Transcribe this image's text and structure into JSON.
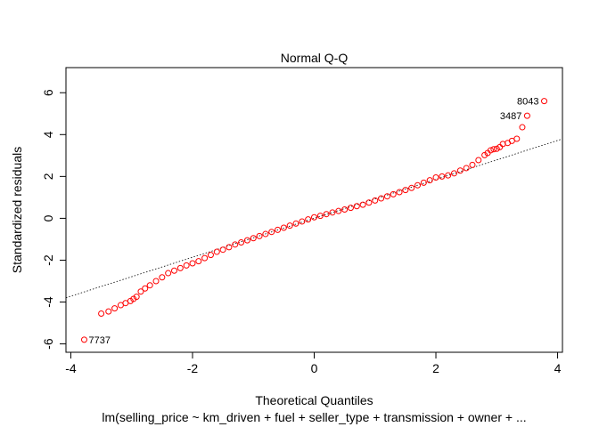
{
  "chart_data": {
    "type": "scatter",
    "title": "Normal Q-Q",
    "xlabel": "Theoretical Quantiles",
    "ylabel": "Standardized residuals",
    "subtitle": "lm(selling_price ~ km_driven + fuel + seller_type + transmission + owner +  ...",
    "xlim": [
      -4.08,
      4.08
    ],
    "ylim": [
      -6.4,
      7.2
    ],
    "xticks": [
      -4,
      -2,
      0,
      2,
      4
    ],
    "yticks": [
      -6,
      -4,
      -2,
      0,
      2,
      4,
      6
    ],
    "x_tick_labels": [
      "-4",
      "-2",
      "0",
      "2",
      "4"
    ],
    "y_tick_labels": [
      "-6",
      "-4",
      "-2",
      "0",
      "2",
      "4",
      "6"
    ],
    "grid": false,
    "legend": "none",
    "point_color": "#FF0000",
    "reference_line": {
      "slope": 0.93,
      "intercept": 0.0,
      "style": "dotted",
      "color": "#000000"
    },
    "series": [
      {
        "points": [
          [
            -3.78,
            -5.8
          ],
          [
            -3.5,
            -4.55
          ],
          [
            -3.38,
            -4.45
          ],
          [
            -3.28,
            -4.3
          ],
          [
            -3.18,
            -4.15
          ],
          [
            -3.1,
            -4.05
          ],
          [
            -3.02,
            -3.95
          ],
          [
            -2.97,
            -3.85
          ],
          [
            -2.92,
            -3.75
          ],
          [
            -2.85,
            -3.5
          ],
          [
            -2.78,
            -3.35
          ],
          [
            -2.7,
            -3.2
          ],
          [
            -2.6,
            -3.0
          ],
          [
            -2.5,
            -2.82
          ],
          [
            -2.4,
            -2.62
          ],
          [
            -2.3,
            -2.5
          ],
          [
            -2.2,
            -2.38
          ],
          [
            -2.1,
            -2.25
          ],
          [
            -2.0,
            -2.15
          ],
          [
            -1.9,
            -2.05
          ],
          [
            -1.8,
            -1.9
          ],
          [
            -1.7,
            -1.75
          ],
          [
            -1.6,
            -1.6
          ],
          [
            -1.5,
            -1.5
          ],
          [
            -1.4,
            -1.38
          ],
          [
            -1.3,
            -1.25
          ],
          [
            -1.2,
            -1.15
          ],
          [
            -1.1,
            -1.05
          ],
          [
            -1.0,
            -0.95
          ],
          [
            -0.9,
            -0.85
          ],
          [
            -0.8,
            -0.75
          ],
          [
            -0.7,
            -0.65
          ],
          [
            -0.6,
            -0.55
          ],
          [
            -0.5,
            -0.45
          ],
          [
            -0.4,
            -0.35
          ],
          [
            -0.3,
            -0.25
          ],
          [
            -0.2,
            -0.15
          ],
          [
            -0.1,
            -0.05
          ],
          [
            0.0,
            0.05
          ],
          [
            0.1,
            0.12
          ],
          [
            0.2,
            0.2
          ],
          [
            0.3,
            0.28
          ],
          [
            0.4,
            0.35
          ],
          [
            0.5,
            0.42
          ],
          [
            0.6,
            0.5
          ],
          [
            0.7,
            0.58
          ],
          [
            0.8,
            0.65
          ],
          [
            0.9,
            0.75
          ],
          [
            1.0,
            0.85
          ],
          [
            1.1,
            0.95
          ],
          [
            1.2,
            1.05
          ],
          [
            1.3,
            1.15
          ],
          [
            1.4,
            1.25
          ],
          [
            1.5,
            1.35
          ],
          [
            1.6,
            1.45
          ],
          [
            1.7,
            1.58
          ],
          [
            1.8,
            1.7
          ],
          [
            1.9,
            1.82
          ],
          [
            2.0,
            1.95
          ],
          [
            2.1,
            2.0
          ],
          [
            2.2,
            2.05
          ],
          [
            2.3,
            2.15
          ],
          [
            2.4,
            2.28
          ],
          [
            2.5,
            2.4
          ],
          [
            2.6,
            2.55
          ],
          [
            2.7,
            2.78
          ],
          [
            2.8,
            3.02
          ],
          [
            2.85,
            3.12
          ],
          [
            2.9,
            3.25
          ],
          [
            2.95,
            3.3
          ],
          [
            3.0,
            3.32
          ],
          [
            3.05,
            3.4
          ],
          [
            3.1,
            3.55
          ],
          [
            3.18,
            3.6
          ],
          [
            3.25,
            3.7
          ],
          [
            3.33,
            3.8
          ],
          [
            3.42,
            4.35
          ],
          [
            3.5,
            4.9
          ],
          [
            3.78,
            5.6
          ]
        ]
      }
    ],
    "annotations": [
      {
        "text": "8043",
        "x": 3.78,
        "y": 5.6,
        "side": "left"
      },
      {
        "text": "3487",
        "x": 3.5,
        "y": 4.9,
        "side": "left"
      },
      {
        "text": "7737",
        "x": -3.78,
        "y": -5.8,
        "side": "right"
      }
    ]
  }
}
